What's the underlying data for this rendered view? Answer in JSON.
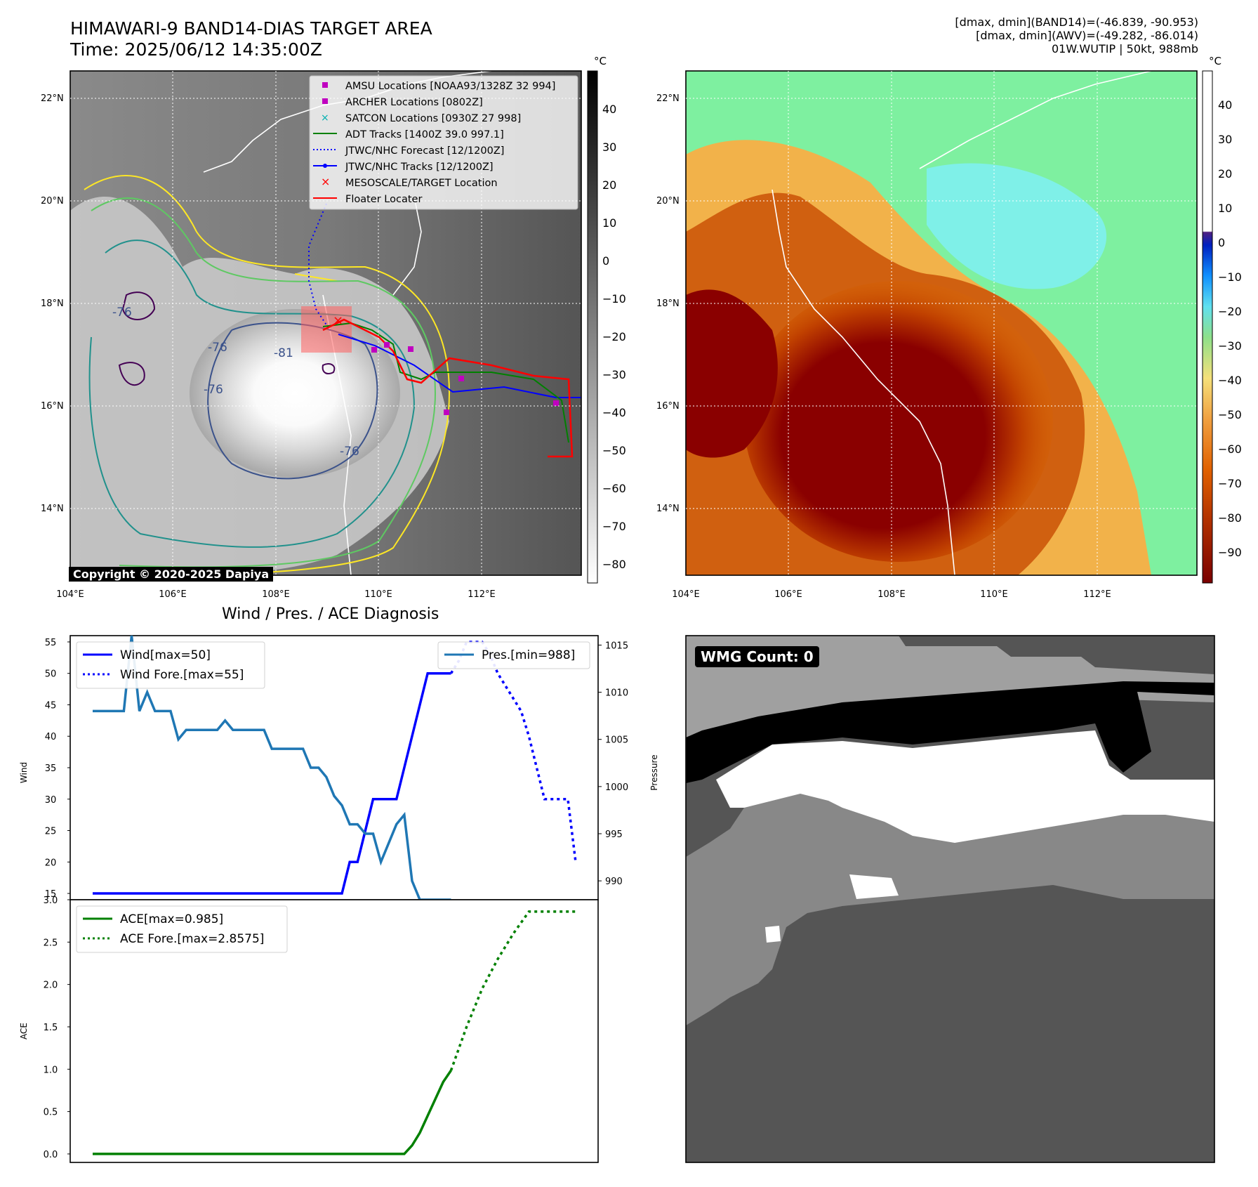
{
  "header": {
    "title_line1": "HIMAWARI-9 BAND14-DIAS TARGET AREA",
    "title_line2": "Time: 2025/06/12 14:35:00Z",
    "info_line1": "[dmax, dmin](BAND14)=(-46.839, -90.953)",
    "info_line2": "[dmax, dmin](AWV)=(-49.282, -86.014)",
    "info_line3": "01W.WUTIP | 50kt, 988mb"
  },
  "map_panel": {
    "lat_labels": [
      "22°N",
      "20°N",
      "18°N",
      "16°N",
      "14°N"
    ],
    "lon_labels": [
      "104°E",
      "106°E",
      "108°E",
      "110°E",
      "112°E"
    ],
    "colorbar_unit": "°C",
    "colorbar_ticks_left": [
      "40",
      "30",
      "20",
      "10",
      "0",
      "−10",
      "−20",
      "−30",
      "−40",
      "−50",
      "−60",
      "−70",
      "−80"
    ],
    "colorbar_ticks_right": [
      "40",
      "30",
      "20",
      "10",
      "0",
      "−10",
      "−20",
      "−30",
      "−40",
      "−50",
      "−60",
      "−70",
      "−80",
      "−90"
    ],
    "contour_labels": [
      "-76",
      "-76",
      "-81",
      "-76",
      "-76"
    ],
    "copyright": "Copyright © 2020-2025 Dapiya",
    "legend": [
      {
        "label": "AMSU Locations [NOAA93/1328Z 32 994]",
        "marker": "square",
        "color": "#c000c0"
      },
      {
        "label": "ARCHER Locations [0802Z]",
        "marker": "square",
        "color": "#c000c0"
      },
      {
        "label": "SATCON Locations [0930Z 27 998]",
        "marker": "x",
        "color": "#00b0b0"
      },
      {
        "label": "ADT Tracks [1400Z 39.0 997.1]",
        "marker": "line",
        "color": "#008000"
      },
      {
        "label": "JTWC/NHC Forecast [12/1200Z]",
        "marker": "dotted",
        "color": "#0000ff"
      },
      {
        "label": "JTWC/NHC Tracks [12/1200Z]",
        "marker": "line-dot",
        "color": "#0000ff"
      },
      {
        "label": "MESOSCALE/TARGET Location",
        "marker": "x",
        "color": "#ff0000"
      },
      {
        "label": "Floater Locater",
        "marker": "line",
        "color": "#ff0000"
      }
    ]
  },
  "diagnosis": {
    "title": "Wind / Pres. / ACE Diagnosis",
    "wind_ylabel": "Wind",
    "pres_ylabel": "Pressure",
    "ace_ylabel": "ACE",
    "wind_ticks": [
      "55",
      "50",
      "45",
      "40",
      "35",
      "30",
      "25",
      "20",
      "15"
    ],
    "pres_ticks": [
      "1015",
      "1010",
      "1005",
      "1000",
      "995",
      "990"
    ],
    "ace_ticks": [
      "3.0",
      "2.5",
      "2.0",
      "1.5",
      "1.0",
      "0.5",
      "0.0"
    ]
  },
  "wmg": {
    "label": "WMG Count: 0"
  },
  "colors": {
    "wind": "#0000ff",
    "pressure": "#1f77b4",
    "ace": "#008000"
  },
  "chart_data": [
    {
      "type": "line",
      "title": "Wind / Pres. / ACE Diagnosis",
      "ylabel": "Wind",
      "ylim": [
        14,
        56
      ],
      "series": [
        {
          "name": "Wind[max=50]",
          "style": "solid",
          "axis": "left",
          "x": [
            0,
            1,
            2,
            3,
            4,
            5,
            6,
            7,
            8,
            9,
            10,
            11,
            12,
            13,
            14,
            15,
            16,
            17,
            18,
            19,
            20,
            21,
            22,
            23,
            24,
            25,
            26,
            27,
            28,
            29,
            30,
            31,
            32,
            33,
            34,
            35,
            36,
            37,
            38,
            39,
            40,
            41,
            42,
            43,
            44,
            45,
            46
          ],
          "values": [
            15,
            15,
            15,
            15,
            15,
            15,
            15,
            15,
            15,
            15,
            15,
            15,
            15,
            15,
            15,
            15,
            15,
            15,
            15,
            15,
            15,
            15,
            15,
            15,
            15,
            15,
            15,
            15,
            15,
            15,
            15,
            15,
            15,
            20,
            20,
            25,
            30,
            30,
            30,
            30,
            35,
            40,
            45,
            50,
            50,
            50,
            50
          ]
        },
        {
          "name": "Wind Fore.[max=55]",
          "style": "dotted",
          "axis": "left",
          "x": [
            46,
            47,
            48,
            49,
            50,
            51,
            52,
            53,
            54,
            55,
            56,
            57,
            58,
            59,
            60,
            61,
            62
          ],
          "values": [
            50,
            52,
            55,
            55,
            55,
            53,
            50,
            48,
            46,
            44,
            40,
            35,
            30,
            30,
            30,
            30,
            20
          ]
        },
        {
          "name": "Pres.[min=988]",
          "style": "solid",
          "axis": "right",
          "x": [
            0,
            1,
            2,
            3,
            4,
            5,
            6,
            7,
            8,
            9,
            10,
            11,
            12,
            13,
            14,
            15,
            16,
            17,
            18,
            19,
            20,
            21,
            22,
            23,
            24,
            25,
            26,
            27,
            28,
            29,
            30,
            31,
            32,
            33,
            34,
            35,
            36,
            37,
            38,
            39,
            40,
            41,
            42,
            43,
            44,
            45,
            46
          ],
          "values": [
            1008,
            1008,
            1008,
            1008,
            1008,
            1016,
            1008,
            1010,
            1008,
            1008,
            1008,
            1005,
            1006,
            1006,
            1006,
            1006,
            1006,
            1007,
            1006,
            1006,
            1006,
            1006,
            1006,
            1004,
            1004,
            1004,
            1004,
            1004,
            1002,
            1002,
            1001,
            999,
            998,
            996,
            996,
            995,
            995,
            992,
            994,
            996,
            997,
            990,
            988,
            988,
            988,
            988,
            988
          ]
        }
      ],
      "y2label": "Pressure",
      "y2lim": [
        988,
        1016
      ]
    },
    {
      "type": "line",
      "ylabel": "ACE",
      "ylim": [
        -0.1,
        3.0
      ],
      "series": [
        {
          "name": "ACE[max=0.985]",
          "style": "solid",
          "x": [
            0,
            5,
            10,
            15,
            20,
            25,
            30,
            33,
            35,
            36,
            37,
            38,
            39,
            40,
            41,
            42,
            43,
            44,
            45,
            46
          ],
          "values": [
            0,
            0,
            0,
            0,
            0,
            0,
            0,
            0,
            0,
            0,
            0,
            0,
            0,
            0,
            0.1,
            0.25,
            0.45,
            0.65,
            0.85,
            0.985
          ]
        },
        {
          "name": "ACE Fore.[max=2.8575]",
          "style": "dotted",
          "x": [
            46,
            48,
            50,
            52,
            54,
            56,
            58,
            60,
            62
          ],
          "values": [
            0.985,
            1.5,
            1.95,
            2.3,
            2.6,
            2.86,
            2.86,
            2.86,
            2.86
          ]
        }
      ]
    }
  ]
}
